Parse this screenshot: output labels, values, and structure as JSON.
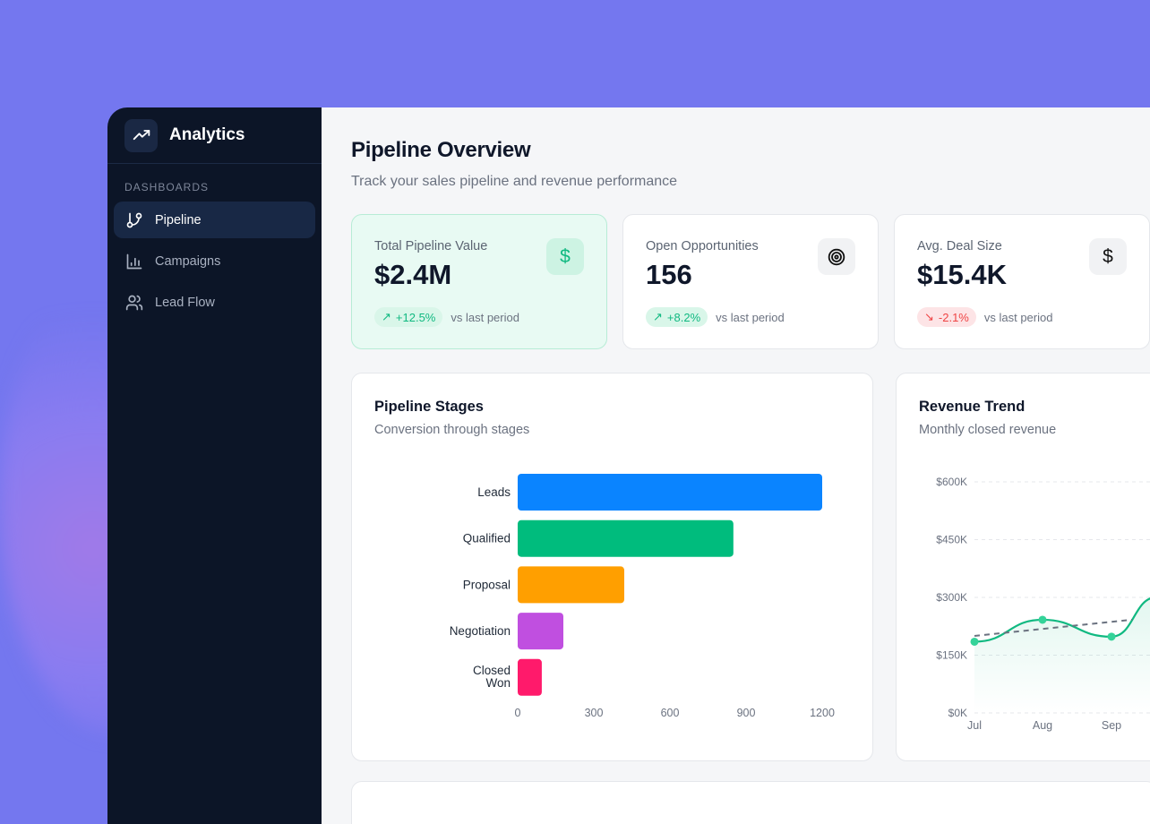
{
  "sidebar": {
    "app_title": "Analytics",
    "section": "DASHBOARDS",
    "items": [
      {
        "label": "Pipeline",
        "icon": "git-branch-icon",
        "active": true
      },
      {
        "label": "Campaigns",
        "icon": "bar-chart-icon"
      },
      {
        "label": "Lead Flow",
        "icon": "users-icon"
      }
    ]
  },
  "header": {
    "title": "Pipeline Overview",
    "subtitle": "Track your sales pipeline and revenue performance"
  },
  "kpis": [
    {
      "label": "Total Pipeline Value",
      "value": "$2.4M",
      "change": "+12.5%",
      "trend": "up",
      "note": "vs last period",
      "icon": "dollar-icon"
    },
    {
      "label": "Open Opportunities",
      "value": "156",
      "change": "+8.2%",
      "trend": "up",
      "note": "vs last period",
      "icon": "target-icon"
    },
    {
      "label": "Avg. Deal Size",
      "value": "$15.4K",
      "change": "-2.1%",
      "trend": "down",
      "note": "vs last period",
      "icon": "dollar-icon"
    }
  ],
  "colors": {
    "accent": "#10b981",
    "negative": "#ef4444",
    "sidebar": "#0c1527"
  },
  "chart_data": [
    {
      "type": "bar",
      "orientation": "horizontal",
      "title": "Pipeline Stages",
      "subtitle": "Conversion through stages",
      "categories": [
        "Leads",
        "Qualified",
        "Proposal",
        "Negotiation",
        "Closed Won"
      ],
      "values": [
        1200,
        850,
        420,
        180,
        95
      ],
      "colors": [
        "#0a84ff",
        "#00bc7d",
        "#ff9f00",
        "#c04fe0",
        "#ff1a6b"
      ],
      "xticks": [
        "0",
        "300",
        "600",
        "900",
        "1200"
      ],
      "xlim": [
        0,
        1200
      ],
      "grid": false
    },
    {
      "type": "area",
      "title": "Revenue Trend",
      "subtitle": "Monthly closed revenue",
      "categories": [
        "Jul",
        "Aug",
        "Sep"
      ],
      "series": [
        {
          "values": [
            185000,
            242000,
            198000
          ],
          "color": "#10b981"
        }
      ],
      "trend_line": {
        "values": [
          200000,
          242000
        ],
        "style": "dashed"
      },
      "yticks": [
        "$0K",
        "$150K",
        "$300K",
        "$450K",
        "$600K"
      ],
      "ylim": [
        0,
        600000
      ],
      "grid": true
    }
  ]
}
